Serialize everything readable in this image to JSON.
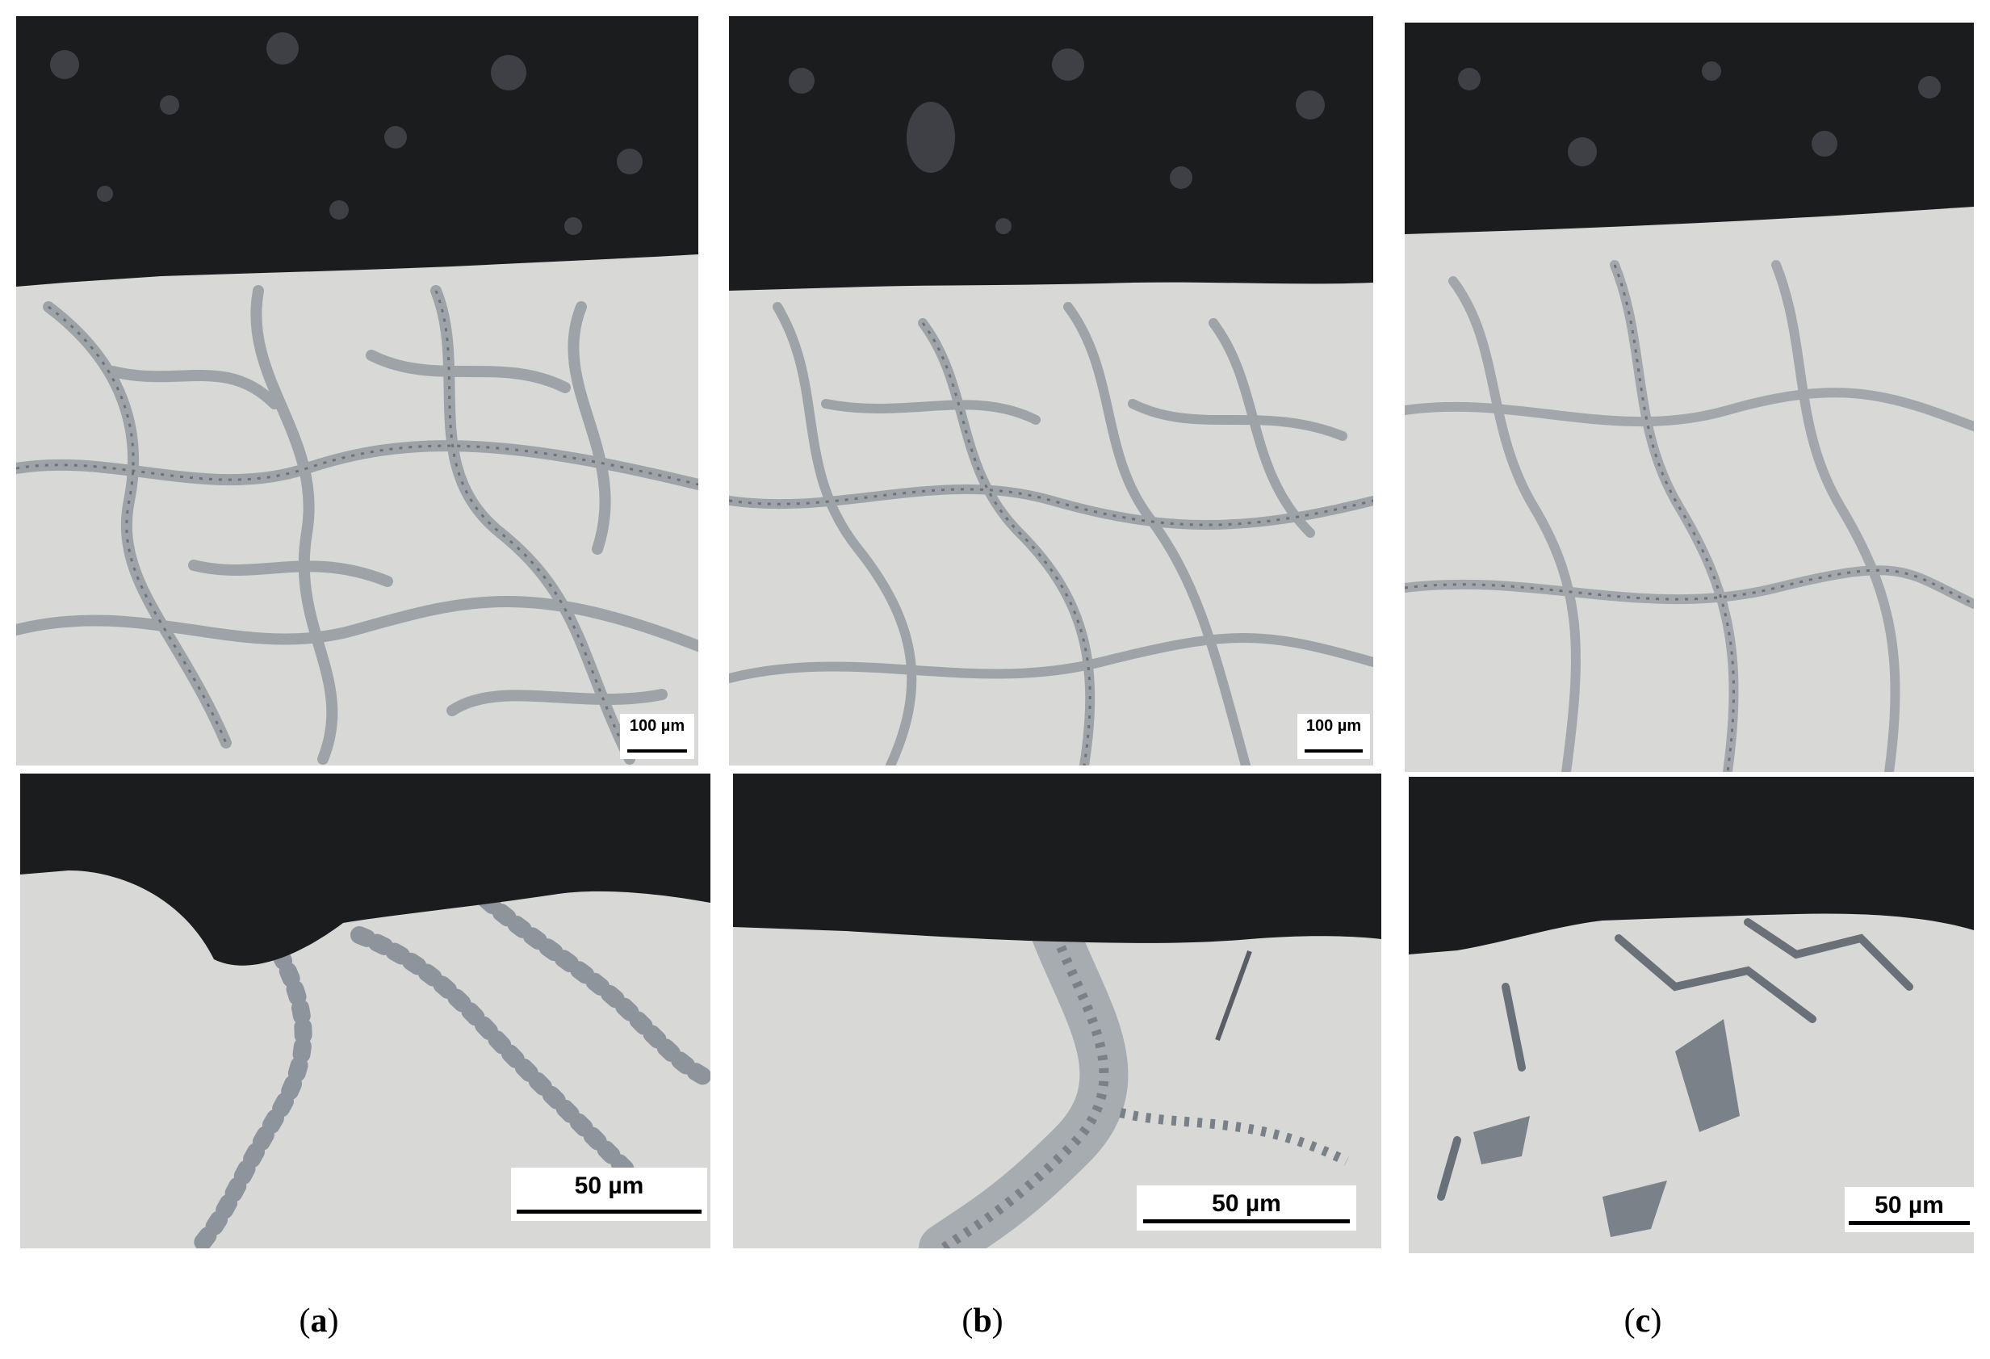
{
  "figure": {
    "panels": [
      {
        "id": "a",
        "caption_open": "(",
        "caption_letter": "a",
        "caption_close": ")",
        "top_scale": "100 µm",
        "bottom_scale": "50 µm"
      },
      {
        "id": "b",
        "caption_open": "(",
        "caption_letter": "b",
        "caption_close": ")",
        "top_scale": "100 µm",
        "bottom_scale": "50 µm"
      },
      {
        "id": "c",
        "caption_open": "(",
        "caption_letter": "c",
        "caption_close": ")",
        "top_scale": "",
        "bottom_scale": "50 µm"
      }
    ]
  },
  "colors": {
    "resin": "#1b1c1e",
    "metal": "#d8d9d6",
    "eutectic": "#9ea3a8",
    "particles": "#3e4045",
    "background": "#ffffff"
  }
}
